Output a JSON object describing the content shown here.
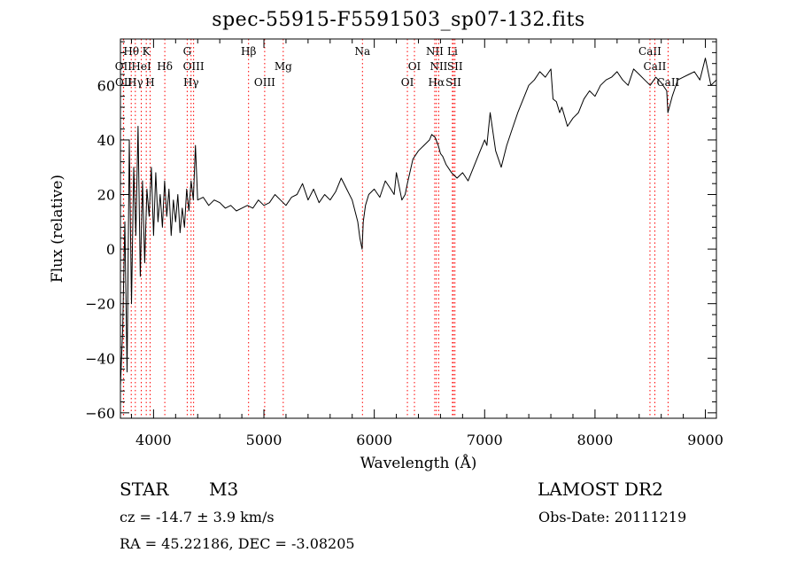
{
  "title": "spec-55915-F5591503_sp07-132.fits",
  "info": {
    "object_class": "STAR",
    "subclass": "M3",
    "survey": "LAMOST DR2",
    "cz": "cz = -14.7 ± 3.9 km/s",
    "obs_date": "Obs-Date: 20111219",
    "radec": "RA =  45.22186, DEC =  -3.08205"
  },
  "chart_data": {
    "type": "line",
    "title": "spec-55915-F5591503_sp07-132.fits",
    "xlabel": "Wavelength (Å)",
    "ylabel": "Flux (relative)",
    "xlim": [
      3700,
      9100
    ],
    "ylim": [
      -62,
      77
    ],
    "xticks": [
      4000,
      5000,
      6000,
      7000,
      8000,
      9000
    ],
    "yticks": [
      -60,
      -40,
      -20,
      0,
      20,
      40,
      60
    ],
    "grid": false,
    "line_color": "#000000",
    "marker_color": "#ff0000",
    "series": [
      {
        "x": [
          3700,
          3720,
          3740,
          3760,
          3780,
          3800,
          3820,
          3840,
          3860,
          3880,
          3900,
          3920,
          3940,
          3960,
          3980,
          4000,
          4020,
          4040,
          4060,
          4080,
          4100,
          4120,
          4140,
          4160,
          4180,
          4200,
          4220,
          4240,
          4260,
          4280,
          4300,
          4320,
          4340,
          4360,
          4380,
          4400,
          4450,
          4500,
          4550,
          4600,
          4650,
          4700,
          4750,
          4800,
          4850,
          4900,
          4950,
          5000,
          5050,
          5100,
          5150,
          5200,
          5250,
          5300,
          5350,
          5400,
          5450,
          5500,
          5550,
          5600,
          5650,
          5700,
          5750,
          5800,
          5850,
          5870,
          5890,
          5900,
          5920,
          5950,
          6000,
          6050,
          6100,
          6150,
          6180,
          6200,
          6220,
          6250,
          6280,
          6300,
          6350,
          6400,
          6450,
          6500,
          6520,
          6550,
          6580,
          6600,
          6620,
          6650,
          6700,
          6750,
          6800,
          6850,
          6900,
          6950,
          7000,
          7020,
          7050,
          7100,
          7150,
          7200,
          7250,
          7300,
          7350,
          7400,
          7450,
          7500,
          7550,
          7600,
          7620,
          7650,
          7680,
          7700,
          7750,
          7800,
          7850,
          7900,
          7950,
          8000,
          8050,
          8100,
          8150,
          8200,
          8250,
          8300,
          8350,
          8400,
          8450,
          8500,
          8550,
          8600,
          8650,
          8660,
          8700,
          8750,
          8800,
          8850,
          8900,
          8950,
          9000,
          9050,
          9100
        ],
        "y": [
          -50,
          -30,
          10,
          -45,
          40,
          -20,
          30,
          5,
          45,
          -10,
          25,
          -5,
          22,
          12,
          30,
          5,
          28,
          10,
          20,
          8,
          25,
          12,
          22,
          5,
          18,
          10,
          20,
          6,
          15,
          8,
          22,
          14,
          25,
          18,
          38,
          18,
          19,
          16,
          18,
          17,
          15,
          16,
          14,
          15,
          16,
          15,
          18,
          16,
          17,
          20,
          18,
          16,
          19,
          20,
          24,
          18,
          22,
          17,
          20,
          18,
          21,
          26,
          22,
          18,
          10,
          4,
          0,
          10,
          16,
          20,
          22,
          19,
          25,
          22,
          20,
          28,
          24,
          18,
          20,
          24,
          33,
          36,
          38,
          40,
          42,
          41,
          38,
          35,
          34,
          31,
          28,
          26,
          28,
          25,
          30,
          35,
          40,
          38,
          50,
          36,
          30,
          38,
          44,
          50,
          55,
          60,
          62,
          65,
          63,
          66,
          55,
          54,
          50,
          52,
          45,
          48,
          50,
          55,
          58,
          56,
          60,
          62,
          63,
          65,
          62,
          60,
          66,
          64,
          62,
          60,
          63,
          61,
          58,
          50,
          56,
          62,
          63,
          64,
          65,
          62,
          70,
          60,
          62
        ]
      }
    ],
    "line_markers": [
      {
        "label": "Hθ",
        "x": 3798,
        "tier": 1
      },
      {
        "label": "K",
        "x": 3934,
        "tier": 1
      },
      {
        "label": "G",
        "x": 4305,
        "tier": 1
      },
      {
        "label": "Hβ",
        "x": 4861,
        "tier": 1
      },
      {
        "label": "Na",
        "x": 5893,
        "tier": 1
      },
      {
        "label": "NII",
        "x": 6548,
        "tier": 1
      },
      {
        "label": "Li",
        "x": 6708,
        "tier": 1
      },
      {
        "label": "CaII",
        "x": 8498,
        "tier": 1
      },
      {
        "label": "OII",
        "x": 3727,
        "tier": 2
      },
      {
        "label": "HeI",
        "x": 3889,
        "tier": 2
      },
      {
        "label": "Hδ",
        "x": 4102,
        "tier": 2
      },
      {
        "label": "OIII",
        "x": 4363,
        "tier": 2
      },
      {
        "label": "Mg",
        "x": 5175,
        "tier": 2
      },
      {
        "label": "OI",
        "x": 6364,
        "tier": 2
      },
      {
        "label": "NII",
        "x": 6584,
        "tier": 2
      },
      {
        "label": "SII",
        "x": 6731,
        "tier": 2
      },
      {
        "label": "CaII",
        "x": 8542,
        "tier": 2
      },
      {
        "label": "OII",
        "x": 3729,
        "tier": 3
      },
      {
        "label": "Hγ",
        "x": 3835,
        "tier": 3
      },
      {
        "label": "H",
        "x": 3969,
        "tier": 3
      },
      {
        "label": "Hγ",
        "x": 4340,
        "tier": 3
      },
      {
        "label": "OIII",
        "x": 5007,
        "tier": 3
      },
      {
        "label": "OI",
        "x": 6300,
        "tier": 3
      },
      {
        "label": "Hα",
        "x": 6563,
        "tier": 3
      },
      {
        "label": "SII",
        "x": 6717,
        "tier": 3
      },
      {
        "label": "CaII",
        "x": 8662,
        "tier": 3
      }
    ]
  }
}
